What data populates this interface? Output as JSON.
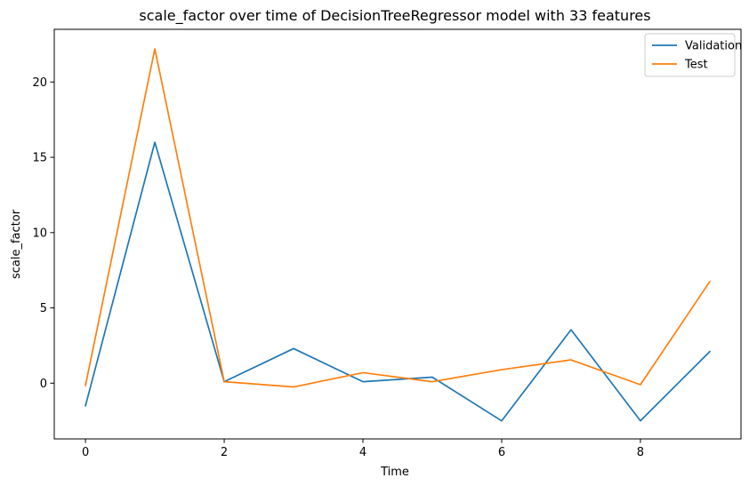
{
  "chart_data": {
    "type": "line",
    "title": "scale_factor over time of DecisionTreeRegressor model with 33 features",
    "xlabel": "Time",
    "ylabel": "scale_factor",
    "xlim": [
      -0.45,
      9.45
    ],
    "ylim": [
      -3.7,
      23.5
    ],
    "xticks": [
      0,
      2,
      4,
      6,
      8
    ],
    "yticks": [
      0,
      5,
      10,
      15,
      20
    ],
    "grid": false,
    "legend_position": "top-right",
    "x": [
      0,
      1,
      2,
      3,
      4,
      5,
      6,
      7,
      8,
      9
    ],
    "series": [
      {
        "name": "Validation",
        "color": "#1f77b4",
        "values": [
          -1.5,
          16.0,
          0.1,
          2.3,
          0.1,
          0.4,
          -2.5,
          3.55,
          -2.5,
          2.1
        ]
      },
      {
        "name": "Test",
        "color": "#ff7f0e",
        "values": [
          -0.15,
          22.2,
          0.1,
          -0.25,
          0.7,
          0.1,
          0.9,
          1.55,
          -0.1,
          6.75
        ]
      }
    ]
  }
}
